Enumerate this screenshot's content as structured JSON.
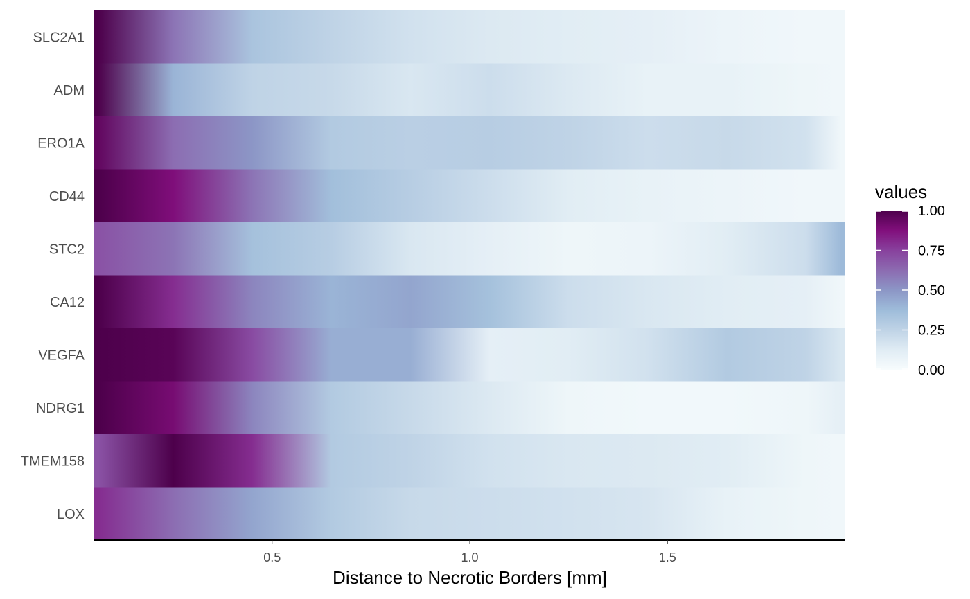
{
  "chart_data": {
    "type": "heatmap",
    "title": "",
    "xlabel": "Distance to Necrotic Borders [mm]",
    "ylabel": "",
    "xlim": [
      0.05,
      1.95
    ],
    "x_ticks": [
      0.5,
      1.0,
      1.5
    ],
    "x_tick_labels": [
      "0.5",
      "1.0",
      "1.5"
    ],
    "grid": false,
    "legend": {
      "title": "values",
      "position": "right",
      "range": [
        0,
        1
      ],
      "ticks": [
        1.0,
        0.75,
        0.5,
        0.25,
        0.0
      ],
      "tick_labels": [
        "1.00",
        "0.75",
        "0.50",
        "0.25",
        "0.00"
      ]
    },
    "colorscale": [
      "#f7fcfd",
      "#e0ecf4",
      "#bfd3e6",
      "#9ebcda",
      "#8c96c6",
      "#8c6bb1",
      "#88419d",
      "#810f7c",
      "#4d004b"
    ],
    "x": [
      0.06,
      0.25,
      0.45,
      0.65,
      0.85,
      1.05,
      1.25,
      1.45,
      1.65,
      1.85,
      1.94
    ],
    "genes": [
      {
        "name": "SLC2A1",
        "values": [
          1.0,
          0.6,
          0.33,
          0.25,
          0.18,
          0.14,
          0.12,
          0.1,
          0.06,
          0.04,
          0.04
        ]
      },
      {
        "name": "ADM",
        "values": [
          1.0,
          0.4,
          0.25,
          0.22,
          0.15,
          0.2,
          0.14,
          0.08,
          0.08,
          0.05,
          0.04
        ]
      },
      {
        "name": "ERO1A",
        "values": [
          0.95,
          0.62,
          0.5,
          0.3,
          0.27,
          0.28,
          0.25,
          0.2,
          0.22,
          0.18,
          0.04
        ]
      },
      {
        "name": "CD44",
        "values": [
          1.0,
          0.88,
          0.6,
          0.36,
          0.28,
          0.2,
          0.12,
          0.08,
          0.06,
          0.04,
          0.04
        ]
      },
      {
        "name": "STC2",
        "values": [
          0.7,
          0.6,
          0.35,
          0.28,
          0.15,
          0.1,
          0.05,
          0.06,
          0.12,
          0.2,
          0.38
        ]
      },
      {
        "name": "CA12",
        "values": [
          1.0,
          0.8,
          0.55,
          0.4,
          0.45,
          0.35,
          0.2,
          0.15,
          0.12,
          0.1,
          0.04
        ]
      },
      {
        "name": "VEGFA",
        "values": [
          1.0,
          0.97,
          0.72,
          0.42,
          0.42,
          0.1,
          0.12,
          0.18,
          0.3,
          0.25,
          0.15
        ]
      },
      {
        "name": "NDRG1",
        "values": [
          1.0,
          0.9,
          0.55,
          0.3,
          0.22,
          0.14,
          0.05,
          0.03,
          0.03,
          0.05,
          0.1
        ]
      },
      {
        "name": "TMEM158",
        "values": [
          0.7,
          1.0,
          0.8,
          0.3,
          0.25,
          0.18,
          0.15,
          0.14,
          0.12,
          0.05,
          0.04
        ]
      },
      {
        "name": "LOX",
        "values": [
          0.8,
          0.62,
          0.45,
          0.3,
          0.22,
          0.2,
          0.18,
          0.16,
          0.08,
          0.05,
          0.04
        ]
      }
    ]
  }
}
